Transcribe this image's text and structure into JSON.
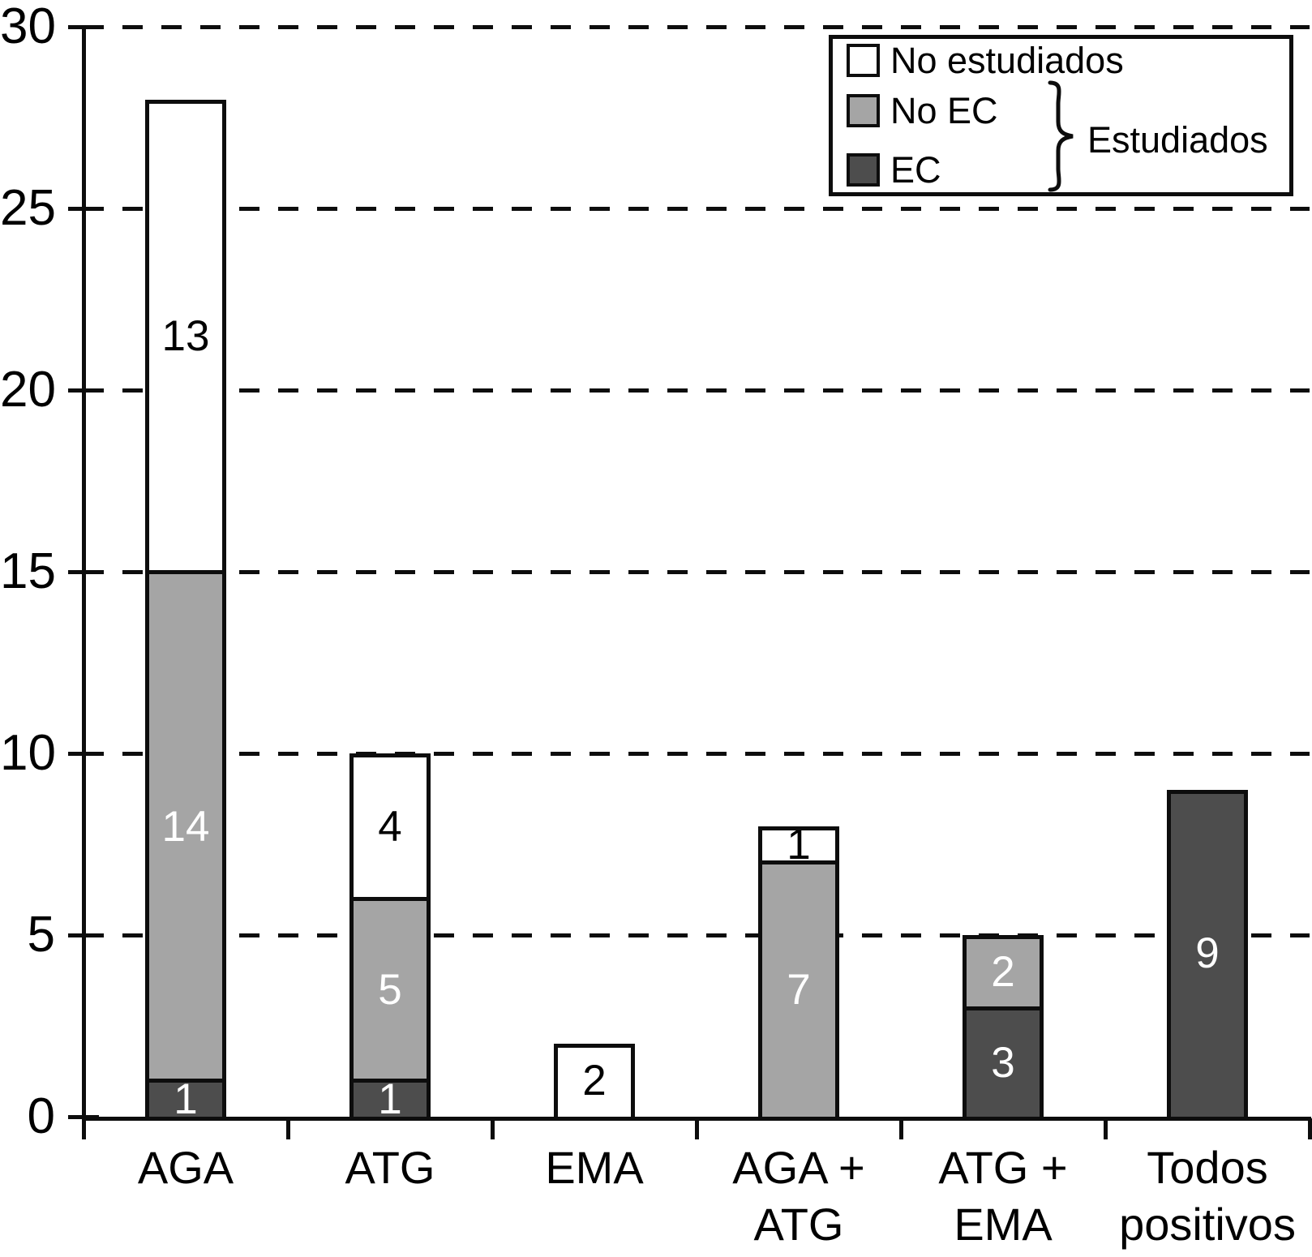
{
  "chart_data": {
    "type": "bar",
    "stacked": true,
    "title": "",
    "xlabel": "",
    "ylabel": "",
    "categories": [
      "AGA",
      "ATG",
      "EMA",
      "AGA +\nATG",
      "ATG +\nEMA",
      "Todos\npositivos"
    ],
    "series": [
      {
        "name": "EC",
        "color": "#4d4d4d",
        "text_color": "#ffffff",
        "values": [
          1,
          1,
          0,
          0,
          3,
          9
        ]
      },
      {
        "name": "No EC",
        "color": "#a5a5a5",
        "text_color": "#ffffff",
        "values": [
          14,
          5,
          0,
          7,
          2,
          0
        ]
      },
      {
        "name": "No estudiados",
        "color": "#ffffff",
        "text_color": "#000000",
        "values": [
          13,
          4,
          2,
          1,
          0,
          0
        ]
      }
    ],
    "stack_order_bottom_to_top": [
      "EC",
      "No EC",
      "No estudiados"
    ],
    "totals": [
      28,
      10,
      2,
      8,
      5,
      9
    ],
    "ylim": [
      0,
      30
    ],
    "yticks": [
      0,
      5,
      10,
      15,
      20,
      25,
      30
    ],
    "grid": "horizontal-dashed",
    "bar_value_labels": true,
    "legend": {
      "position": "top-right",
      "entries": [
        {
          "label": "No estudiados",
          "color": "#ffffff"
        },
        {
          "label": "No EC",
          "color": "#a5a5a5"
        },
        {
          "label": "EC",
          "color": "#4d4d4d"
        }
      ],
      "group": {
        "label": "Estudiados",
        "applies_to": [
          "No EC",
          "EC"
        ]
      }
    }
  }
}
